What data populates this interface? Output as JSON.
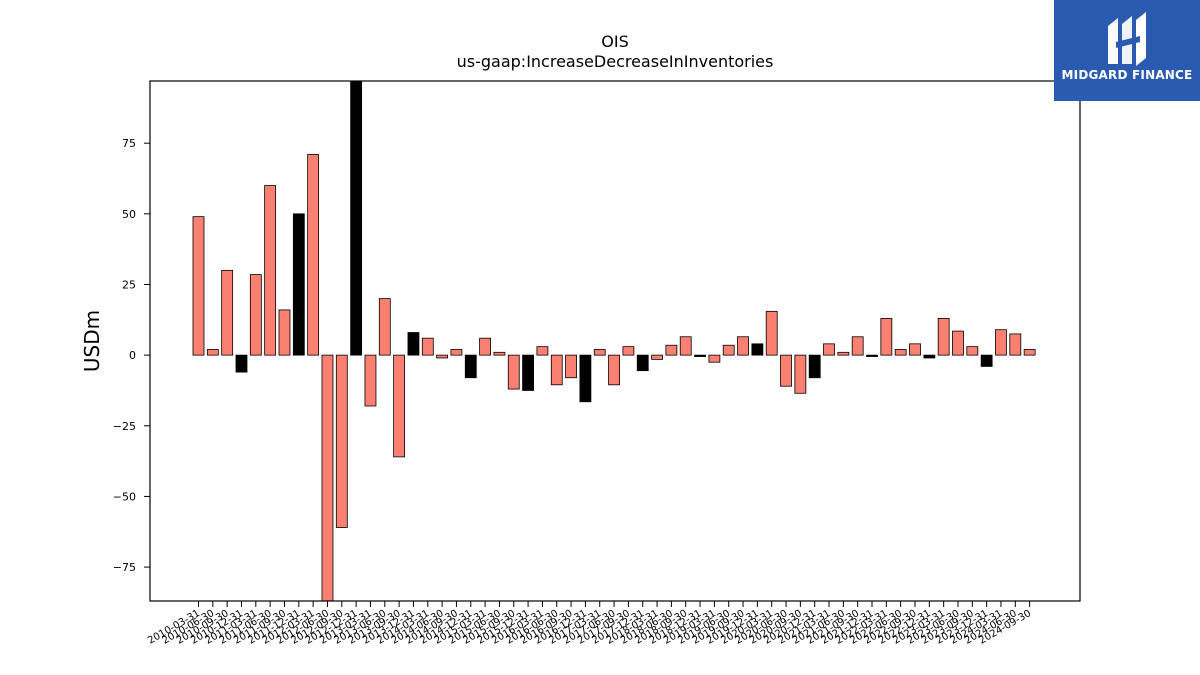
{
  "chart_data": {
    "type": "bar",
    "title": "OIS",
    "subtitle": "us-gaap:IncreaseDecreaseInInventories",
    "xlabel": "",
    "ylabel": "USDm",
    "ylim": [
      -87,
      97
    ],
    "yticks": [
      -75,
      -50,
      -25,
      0,
      25,
      50,
      75
    ],
    "grid": false,
    "colors": {
      "quarterly": "#fa8072",
      "annual": "#000000",
      "edge": "#000000"
    },
    "categories": [
      "2010-03-31",
      "2010-06-30",
      "2010-09-30",
      "2010-12-31",
      "2011-03-31",
      "2011-06-30",
      "2011-09-30",
      "2011-12-31",
      "2012-03-31",
      "2012-06-30",
      "2012-09-30",
      "2012-12-31",
      "2013-03-31",
      "2013-06-30",
      "2013-09-30",
      "2013-12-31",
      "2014-03-31",
      "2014-06-30",
      "2014-09-30",
      "2014-12-31",
      "2015-03-31",
      "2015-06-30",
      "2015-09-30",
      "2015-12-31",
      "2016-03-31",
      "2016-06-30",
      "2016-09-30",
      "2016-12-31",
      "2017-03-31",
      "2017-06-30",
      "2017-09-30",
      "2017-12-31",
      "2018-03-31",
      "2018-06-30",
      "2018-09-30",
      "2018-12-31",
      "2019-03-31",
      "2019-06-30",
      "2019-09-30",
      "2019-12-31",
      "2020-03-31",
      "2020-06-30",
      "2020-09-30",
      "2020-12-31",
      "2021-03-31",
      "2021-06-30",
      "2021-09-30",
      "2021-12-31",
      "2022-03-31",
      "2022-06-30",
      "2022-09-30",
      "2022-12-31",
      "2023-03-31",
      "2023-06-30",
      "2023-09-30",
      "2023-12-31",
      "2024-03-31",
      "2024-06-30",
      "2024-09-30"
    ],
    "values": [
      49,
      2,
      30,
      -6,
      28.5,
      60,
      16,
      50,
      71,
      -87,
      -61,
      100,
      -18,
      20,
      -36,
      8,
      6,
      -1,
      2,
      -8,
      6,
      1,
      -12,
      -12.5,
      3,
      -10.5,
      -8,
      -16.5,
      2,
      -10.5,
      3,
      -5.5,
      -1.5,
      3.5,
      6.5,
      -0.5,
      -2.5,
      3.5,
      6.5,
      4,
      15.5,
      -11,
      -13.5,
      -8,
      4,
      1,
      6.5,
      -0.5,
      13,
      2,
      4,
      -1,
      13,
      8.5,
      3,
      -4,
      9,
      7.5,
      2
    ],
    "annual_flags": [
      0,
      0,
      0,
      1,
      0,
      0,
      0,
      1,
      0,
      0,
      0,
      1,
      0,
      0,
      0,
      1,
      0,
      0,
      0,
      1,
      0,
      0,
      0,
      1,
      0,
      0,
      0,
      1,
      0,
      0,
      0,
      1,
      0,
      0,
      0,
      1,
      0,
      0,
      0,
      1,
      0,
      0,
      0,
      1,
      0,
      0,
      0,
      1,
      0,
      0,
      0,
      1,
      0,
      0,
      0,
      1,
      0,
      0,
      0
    ]
  },
  "logo": {
    "name": "MIDGARD FINANCE",
    "icon": "midgard-logo-icon",
    "color": "#2b5bb0"
  }
}
